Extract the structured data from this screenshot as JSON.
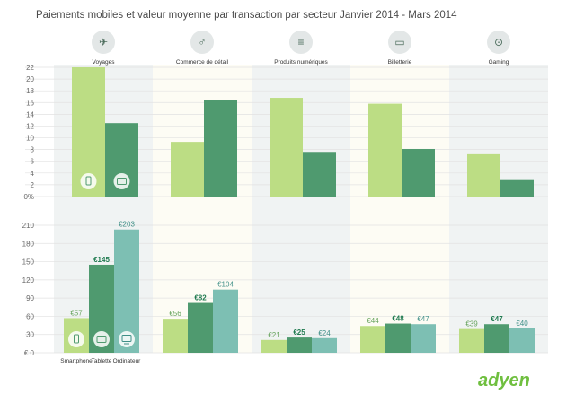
{
  "chart_data": {
    "type": "bar",
    "title": "Paiements mobiles et valeur moyenne par transaction par secteur Janvier 2014 - Mars 2014",
    "categories": [
      "Voyages",
      "Commerce de détail",
      "Produits numériques",
      "Billetterie",
      "Gaming"
    ],
    "category_icons": [
      "airplane-icon",
      "dress-icon",
      "sliders-icon",
      "ticket-icon",
      "gamepad-icon"
    ],
    "colors": {
      "light": "#bcdd84",
      "dark": "#4f9a6f",
      "teal": "#7dbfb3",
      "band": "#f0f3f3",
      "band_alt": "#fdfcf4"
    },
    "top": {
      "ylabel_unit": "%",
      "ylim": [
        0,
        22
      ],
      "ticks": [
        "0%",
        "2",
        "4",
        "6",
        "8",
        "10",
        "12",
        "14",
        "16",
        "18",
        "20",
        "22"
      ],
      "series": [
        {
          "name": "Smartphone",
          "values": [
            22,
            9.3,
            16.8,
            15.8,
            7.2
          ]
        },
        {
          "name": "Tablette",
          "values": [
            12.5,
            16.5,
            7.6,
            8.1,
            2.8
          ]
        }
      ]
    },
    "bottom": {
      "ylabel_unit": "€",
      "ylim": [
        0,
        210
      ],
      "ticks": [
        "€ 0",
        "30",
        "60",
        "90",
        "120",
        "150",
        "180",
        "210"
      ],
      "series": [
        {
          "name": "Smartphone",
          "values": [
            57,
            56,
            21,
            44,
            39
          ],
          "labels": [
            "€57",
            "€56",
            "€21",
            "€44",
            "€39"
          ]
        },
        {
          "name": "Tablette",
          "values": [
            145,
            82,
            25,
            48,
            47
          ],
          "labels": [
            "€145",
            "€82",
            "€25",
            "€48",
            "€47"
          ]
        },
        {
          "name": "Ordinateur",
          "values": [
            203,
            104,
            24,
            47,
            40
          ],
          "labels": [
            "€203",
            "€104",
            "€24",
            "€47",
            "€40"
          ]
        }
      ]
    },
    "legend": [
      "Smartphone",
      "Tablette",
      "Ordinateur"
    ],
    "legend_icons": [
      "smartphone-icon",
      "tablet-icon",
      "computer-icon"
    ],
    "brand": "adyen"
  }
}
